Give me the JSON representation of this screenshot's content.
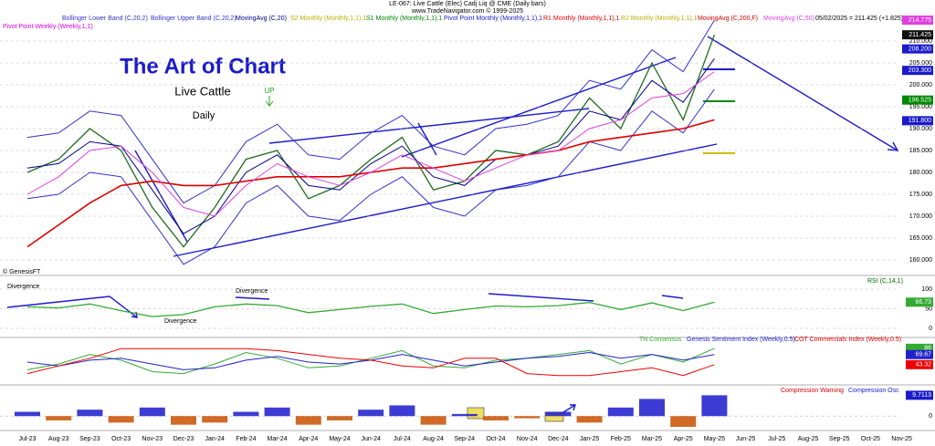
{
  "chart_data": {
    "header": "LE-067:  Live Cattle (Elec) Cadj Liq @ CME  (Daily bars)",
    "source": "www.TradeNavigator.com © 1999-2025",
    "quote": "05/02/2025 = 211.425 (+1.825)",
    "categories": [
      "Jul-23",
      "Aug-23",
      "Sep-23",
      "Oct-23",
      "Nov-23",
      "Dec-23",
      "Jan-24",
      "Feb-24",
      "Mar-24",
      "Apr-24",
      "May-24",
      "Jun-24",
      "Jul-24",
      "Aug-24",
      "Sep-24",
      "Oct-24",
      "Nov-24",
      "Dec-24",
      "Jan-25",
      "Feb-25",
      "Mar-25",
      "Apr-25",
      "May-25",
      "Jun-25",
      "Jul-25",
      "Aug-25",
      "Sep-25",
      "Oct-25",
      "Nov-25"
    ],
    "panels": [
      {
        "type": "line",
        "title": "The Art of Chart",
        "subtitle": "Live Cattle",
        "timeframe": "Daily",
        "trend": "UP",
        "credit": "© GenesisFT",
        "ylim": [
          157,
          217
        ],
        "grid": true,
        "yticks": [
          {
            "value": 160,
            "label": "160.000"
          },
          {
            "value": 165,
            "label": "165.000"
          },
          {
            "value": 170,
            "label": "170.000"
          },
          {
            "value": 175,
            "label": "175.000"
          },
          {
            "value": 180,
            "label": "180.000"
          },
          {
            "value": 185,
            "label": "185.000"
          },
          {
            "value": 190,
            "label": "190.000"
          },
          {
            "value": 195,
            "label": "195.000"
          },
          {
            "value": 200,
            "label": "200.000"
          },
          {
            "value": 205,
            "label": "205.000"
          },
          {
            "value": 210,
            "label": "210.000"
          }
        ],
        "values": [
          180,
          183,
          190,
          185,
          172,
          163,
          172,
          183,
          185,
          174,
          177,
          183,
          188,
          176,
          178,
          185,
          184,
          187,
          197,
          190,
          205,
          192,
          211.425,
          null,
          null,
          null,
          null,
          null,
          null
        ],
        "color": "#1f6b1f",
        "series": [
          {
            "name": "Bollinger Lower Band (C,20,2)",
            "color": "#3333cc",
            "values": [
              174,
              175,
              180,
              179,
              169,
              159,
              163,
              173,
              177,
              170,
              169,
              175,
              179,
              172,
              170,
              176,
              177,
              179,
              187,
              185,
              194,
              189,
              199,
              null,
              null,
              null,
              null,
              null,
              null
            ]
          },
          {
            "name": "Bollinger Upper Band (C,20,2)",
            "color": "#3333cc",
            "values": [
              188,
              189,
              194,
              193,
              183,
              173,
              177,
              187,
              191,
              184,
              183,
              189,
              193,
              186,
              184,
              190,
              191,
              193,
              201,
              199,
              208,
              203,
              214.775,
              null,
              null,
              null,
              null,
              null,
              null
            ]
          },
          {
            "name": "MovingAvg (C,20)",
            "color": "#000088",
            "values": [
              181,
              182,
              187,
              186,
              176,
              166,
              170,
              180,
              184,
              177,
              176,
              182,
              186,
              179,
              177,
              183,
              184,
              186,
              194,
              192,
              201,
              196,
              206,
              null,
              null,
              null,
              null,
              null,
              null
            ]
          },
          {
            "name": "MovingAvg (C,200,F)",
            "color": "#dd0000",
            "values": [
              163,
              168,
              173,
              177,
              178,
              177,
              177,
              178,
              179,
              179,
              179,
              180,
              181,
              181,
              182,
              183,
              184,
              185,
              187,
              188,
              189,
              190,
              192,
              null,
              null,
              null,
              null,
              null,
              null
            ]
          },
          {
            "name": "MovingAvg (C,50)",
            "color": "#e040e0",
            "values": [
              175,
              179,
              185,
              186,
              180,
              172,
              170,
              177,
              182,
              179,
              177,
              180,
              184,
              181,
              178,
              181,
              184,
              185,
              190,
              192,
              197,
              198,
              203,
              null,
              null,
              null,
              null,
              null,
              null
            ]
          }
        ],
        "pivot_labels": [
          {
            "name": "S2 Monthly (Monthly,1,1),1",
            "color": "#b8b000"
          },
          {
            "name": "S1 Monthly (Monthly,1,1),1",
            "color": "#008800"
          },
          {
            "name": "Pivot Point Monthly (Monthly,1,1),1",
            "color": "#1a1acc"
          },
          {
            "name": "R1 Monthly (Monthly,1,1),1",
            "color": "#dd0000"
          },
          {
            "name": "R2 Monthly (Monthly,1,1),1",
            "color": "#b8b000"
          },
          {
            "name": "Pivot Point Weekly (Weekly,1,1)",
            "color": "#e000e0"
          }
        ],
        "price_levels": [
          {
            "value": 214.775,
            "label": "214.775",
            "color": "#e040e0"
          },
          {
            "value": 211.425,
            "label": "211.425",
            "color": "#111111"
          },
          {
            "value": 208.2,
            "label": "208.200",
            "color": "#1a1acc"
          },
          {
            "value": 203.3,
            "label": "203.300",
            "color": "#1a1acc"
          },
          {
            "value": 196.525,
            "label": "196.525",
            "color": "#008800"
          },
          {
            "value": 191.8,
            "label": "191.800",
            "color": "#1a1acc"
          }
        ]
      },
      {
        "type": "line",
        "title": "RSI (C,14,1)",
        "ylim": [
          0,
          100
        ],
        "yticks": [
          0,
          50,
          100
        ],
        "annotations": [
          "Divergence",
          "Divergence",
          "Divergence"
        ],
        "color": "#33aa33",
        "values": [
          55,
          52,
          62,
          45,
          30,
          35,
          55,
          62,
          58,
          40,
          48,
          56,
          62,
          38,
          48,
          57,
          55,
          58,
          66,
          48,
          65,
          45,
          66.73,
          null,
          null,
          null,
          null,
          null,
          null
        ]
      },
      {
        "type": "line",
        "ylim": [
          0,
          100
        ],
        "series": [
          {
            "name": "TN Consensus",
            "color": "#33aa33",
            "values": [
              30,
              45,
              70,
              55,
              25,
              20,
              45,
              75,
              60,
              35,
              40,
              60,
              80,
              40,
              35,
              55,
              60,
              70,
              80,
              45,
              70,
              50,
              86,
              null,
              null,
              null,
              null,
              null,
              null
            ]
          },
          {
            "name": "Genesis Sentiment Index (Weekly,0.5)",
            "color": "#2222cc",
            "values": [
              50,
              40,
              55,
              60,
              45,
              30,
              35,
              55,
              65,
              50,
              45,
              55,
              70,
              55,
              40,
              50,
              60,
              65,
              75,
              60,
              70,
              55,
              69.67,
              null,
              null,
              null,
              null,
              null,
              null
            ]
          },
          {
            "name": "COT Commercials Index (Weekly,0.5)",
            "color": "#ee0000",
            "values": [
              20,
              40,
              60,
              85,
              85,
              85,
              85,
              85,
              80,
              70,
              60,
              55,
              40,
              35,
              60,
              60,
              20,
              15,
              15,
              25,
              35,
              15,
              43.32,
              null,
              null,
              null,
              null,
              null,
              null
            ]
          }
        ]
      },
      {
        "type": "bar",
        "ylim": [
          -5,
          12
        ],
        "yticks": [
          0
        ],
        "warning_label": "Compression Warning",
        "warning_color": "#dd0000",
        "series": [
          {
            "name": "Compression Osc",
            "color": "#1a1acc",
            "negative_color": "#c85000",
            "values": [
              2,
              -2,
              3,
              -3,
              4,
              -4,
              -3,
              2,
              4,
              -4,
              -2,
              3,
              5,
              -4,
              1,
              -2,
              -1,
              2,
              -3,
              4,
              8,
              -5,
              9.7113,
              null,
              null,
              null,
              null,
              null,
              null
            ]
          }
        ]
      }
    ]
  }
}
